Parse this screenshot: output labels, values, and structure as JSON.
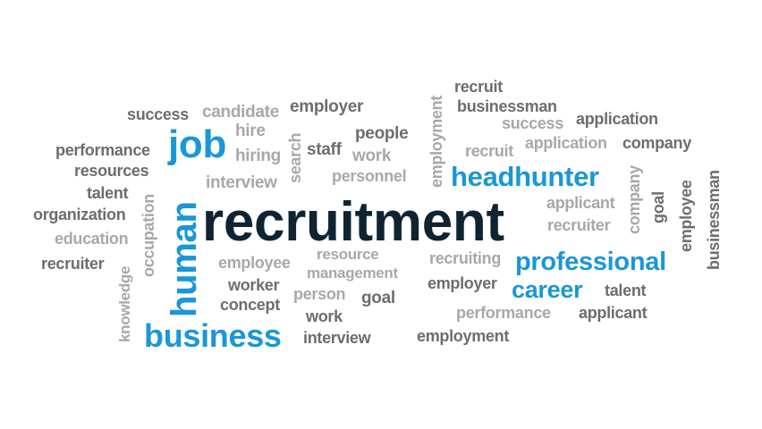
{
  "cloud": {
    "words": [
      {
        "text": "recruitment",
        "style": "navy"
      },
      {
        "text": "headhunter",
        "style": "blue"
      },
      {
        "text": "professional",
        "style": "blue"
      },
      {
        "text": "career",
        "style": "blue"
      },
      {
        "text": "business",
        "style": "blue"
      },
      {
        "text": "job",
        "style": "blue"
      },
      {
        "text": "human",
        "style": "blue"
      },
      {
        "text": "success",
        "style": "dark"
      },
      {
        "text": "candidate",
        "style": "light"
      },
      {
        "text": "employer",
        "style": "dark"
      },
      {
        "text": "hire",
        "style": "light"
      },
      {
        "text": "hiring",
        "style": "light"
      },
      {
        "text": "search",
        "style": "light"
      },
      {
        "text": "staff",
        "style": "dark"
      },
      {
        "text": "people",
        "style": "dark"
      },
      {
        "text": "work",
        "style": "light"
      },
      {
        "text": "personnel",
        "style": "light"
      },
      {
        "text": "interview",
        "style": "light"
      },
      {
        "text": "performance",
        "style": "dark"
      },
      {
        "text": "resources",
        "style": "dark"
      },
      {
        "text": "talent",
        "style": "dark"
      },
      {
        "text": "organization",
        "style": "dark"
      },
      {
        "text": "education",
        "style": "light"
      },
      {
        "text": "recruiter",
        "style": "dark"
      },
      {
        "text": "occupation",
        "style": "light"
      },
      {
        "text": "knowledge",
        "style": "light"
      },
      {
        "text": "employee",
        "style": "light"
      },
      {
        "text": "worker",
        "style": "dark"
      },
      {
        "text": "concept",
        "style": "dark"
      },
      {
        "text": "resource",
        "style": "light"
      },
      {
        "text": "management",
        "style": "light"
      },
      {
        "text": "person",
        "style": "light"
      },
      {
        "text": "goal",
        "style": "dark"
      },
      {
        "text": "work",
        "style": "dark"
      },
      {
        "text": "interview",
        "style": "dark"
      },
      {
        "text": "employment",
        "style": "light"
      },
      {
        "text": "recruit",
        "style": "dark"
      },
      {
        "text": "businessman",
        "style": "dark"
      },
      {
        "text": "success",
        "style": "light"
      },
      {
        "text": "application",
        "style": "dark"
      },
      {
        "text": "recruit",
        "style": "light"
      },
      {
        "text": "application",
        "style": "light"
      },
      {
        "text": "company",
        "style": "dark"
      },
      {
        "text": "applicant",
        "style": "light"
      },
      {
        "text": "recruiter",
        "style": "light"
      },
      {
        "text": "company",
        "style": "light"
      },
      {
        "text": "goal",
        "style": "dark"
      },
      {
        "text": "employee",
        "style": "dark"
      },
      {
        "text": "businessman",
        "style": "dark"
      },
      {
        "text": "recruiting",
        "style": "light"
      },
      {
        "text": "employer",
        "style": "dark"
      },
      {
        "text": "talent",
        "style": "dark"
      },
      {
        "text": "performance",
        "style": "light"
      },
      {
        "text": "applicant",
        "style": "dark"
      },
      {
        "text": "employment",
        "style": "dark"
      }
    ]
  }
}
